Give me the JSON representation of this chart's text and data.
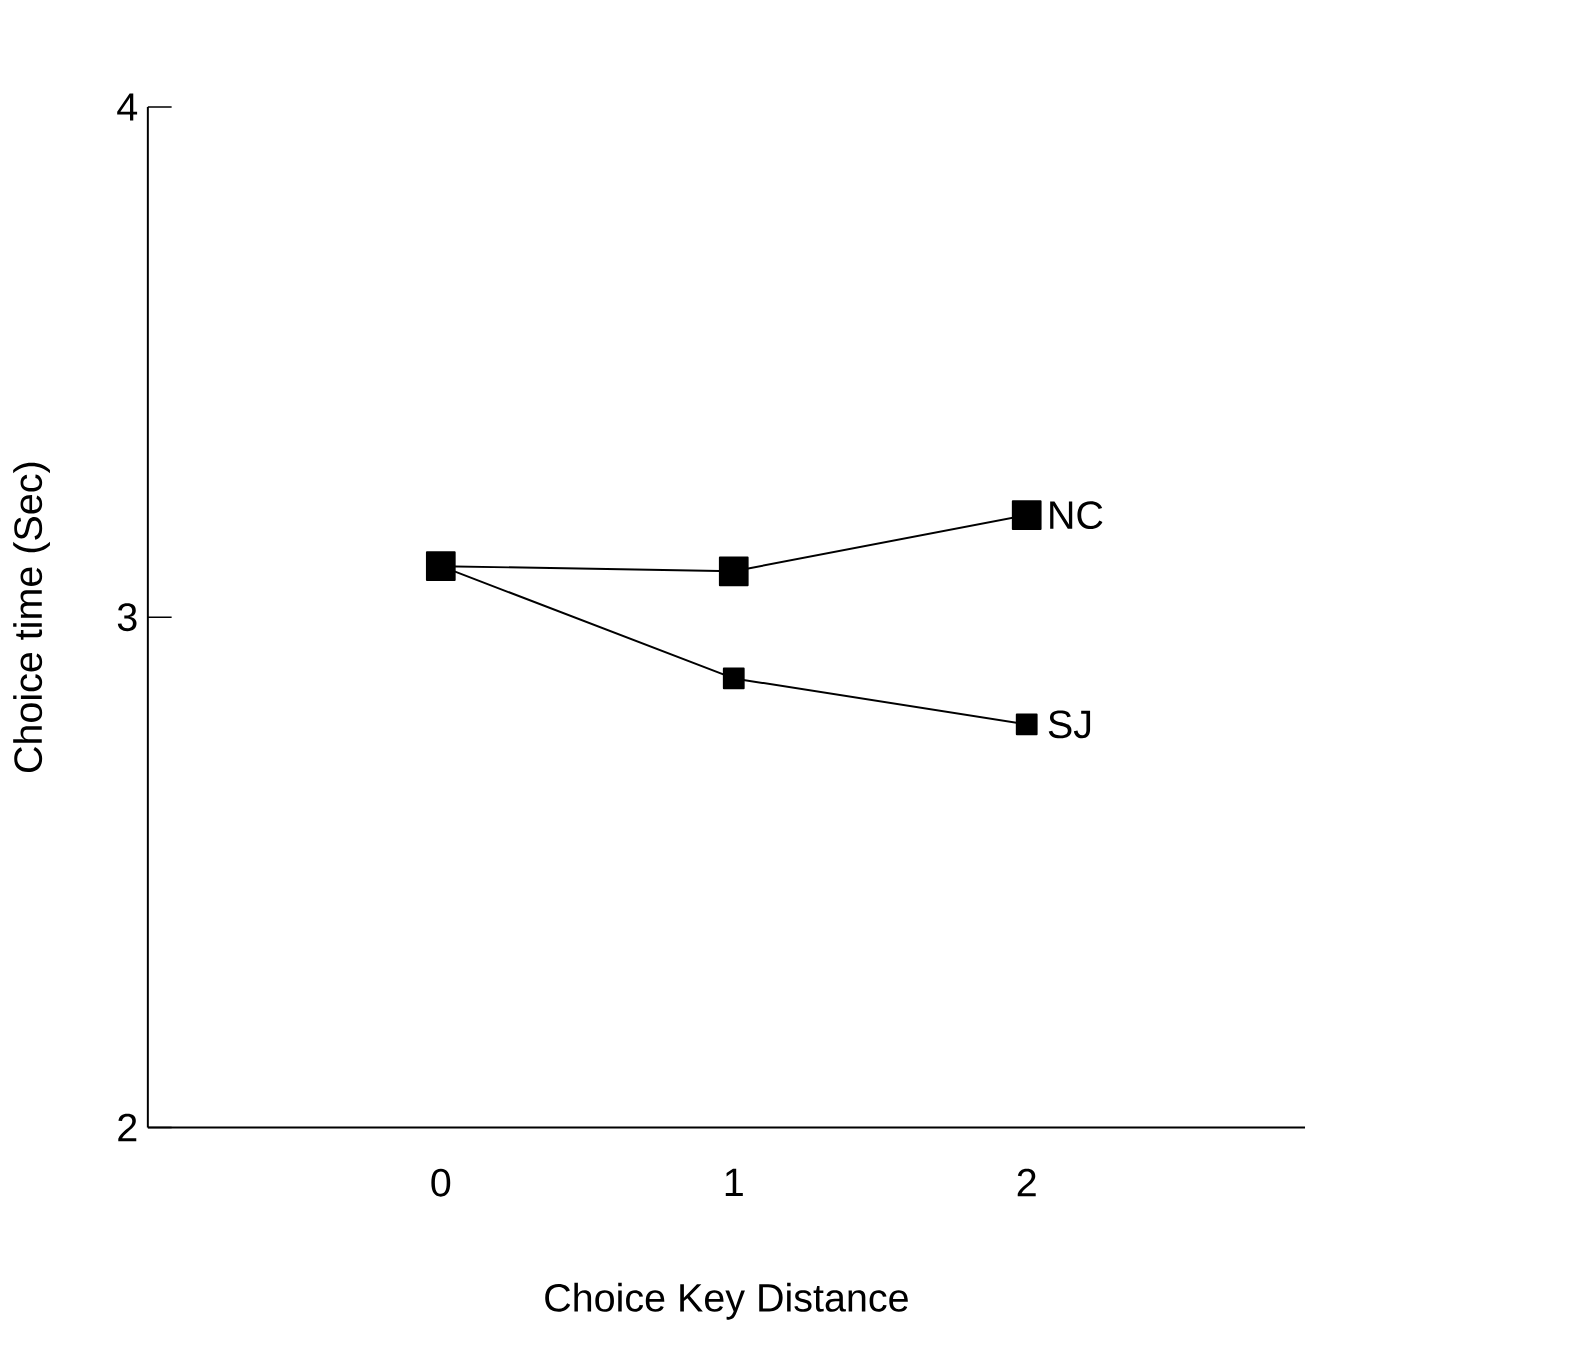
{
  "chart_data": {
    "type": "line",
    "xlabel": "Choice Key Distance",
    "ylabel": "Choice time (Sec)",
    "x": [
      0,
      1,
      2
    ],
    "xlim": [
      -1,
      2.95
    ],
    "xticks": [
      0,
      1,
      2
    ],
    "ylim": [
      2,
      4
    ],
    "yticks": [
      2,
      3,
      4
    ],
    "marker": "square",
    "line_style": "solid",
    "grid": false,
    "series": [
      {
        "name": "NC",
        "color": "#000000",
        "values": [
          3.1,
          3.09,
          3.2
        ]
      },
      {
        "name": "SJ",
        "color": "#000000",
        "values": [
          3.1,
          2.88,
          2.79
        ]
      }
    ]
  }
}
